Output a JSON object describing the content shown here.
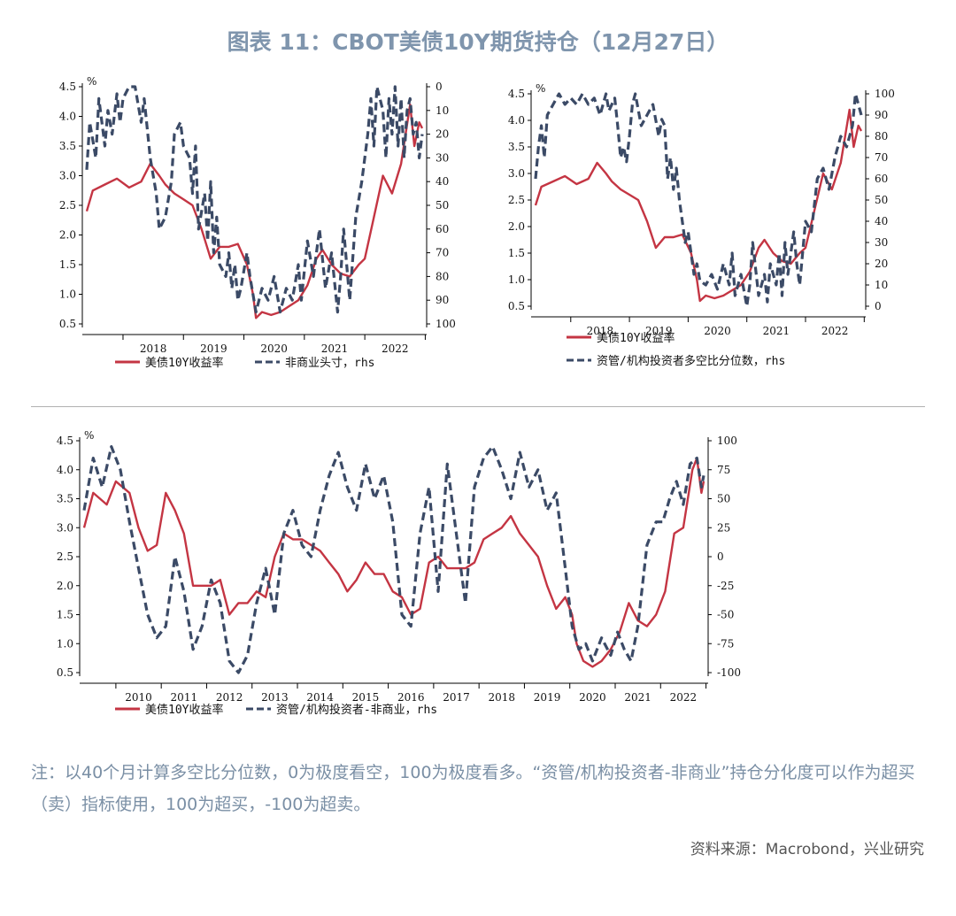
{
  "title": "图表 11：CBOT美债10Y期货持仓（12月27日）",
  "colors": {
    "yield": "#c43543",
    "position": "#3b4a66",
    "title": "#7f95ad"
  },
  "note": "注：以40个月计算多空比分位数，0为极度看空，100为极度看多。“资管/机构投资者-非商业”持仓分化度可以作为超买（卖）指标使用，100为超买，-100为超卖。",
  "source": "资料来源：Macrobond，兴业研究",
  "chart_data": [
    {
      "type": "line",
      "unit_label": "%",
      "x_range": [
        2017.4,
        2022.95
      ],
      "x_ticks": [
        "2018",
        "2019",
        "2020",
        "2021",
        "2022"
      ],
      "y_left": {
        "ticks": [
          "4.5",
          "4.0",
          "3.5",
          "3.0",
          "2.5",
          "2.0",
          "1.5",
          "1.0",
          "0.5"
        ],
        "range": [
          0.5,
          4.5
        ]
      },
      "y_right": {
        "ticks": [
          "0",
          "10",
          "20",
          "30",
          "40",
          "50",
          "60",
          "70",
          "80",
          "90",
          "100"
        ],
        "range": [
          0,
          100
        ],
        "inverted": true
      },
      "legend": [
        {
          "label": "美债10Y收益率",
          "style": "solid"
        },
        {
          "label": "非商业头寸，rhs",
          "style": "dashed"
        }
      ],
      "series": [
        {
          "name": "美债10Y收益率",
          "axis": "left",
          "style": "solid",
          "x": [
            2017.4,
            2017.5,
            2017.7,
            2017.9,
            2018.1,
            2018.3,
            2018.45,
            2018.6,
            2018.7,
            2018.85,
            2019.0,
            2019.15,
            2019.3,
            2019.45,
            2019.6,
            2019.75,
            2019.9,
            2020.05,
            2020.15,
            2020.2,
            2020.3,
            2020.45,
            2020.6,
            2020.75,
            2020.9,
            2021.05,
            2021.2,
            2021.3,
            2021.45,
            2021.6,
            2021.75,
            2021.9,
            2022.0,
            2022.15,
            2022.3,
            2022.45,
            2022.6,
            2022.75,
            2022.82,
            2022.9,
            2022.95
          ],
          "y": [
            2.4,
            2.75,
            2.85,
            2.95,
            2.8,
            2.9,
            3.2,
            3.0,
            2.85,
            2.7,
            2.6,
            2.5,
            2.1,
            1.6,
            1.8,
            1.8,
            1.85,
            1.5,
            1.0,
            0.6,
            0.7,
            0.65,
            0.7,
            0.8,
            0.9,
            1.15,
            1.6,
            1.75,
            1.5,
            1.35,
            1.3,
            1.5,
            1.6,
            2.3,
            3.0,
            2.7,
            3.2,
            4.2,
            3.5,
            3.9,
            3.8
          ]
        },
        {
          "name": "非商业头寸，rhs",
          "axis": "right",
          "style": "dashed",
          "x": [
            2017.4,
            2017.45,
            2017.55,
            2017.6,
            2017.7,
            2017.75,
            2017.82,
            2017.9,
            2017.95,
            2018.0,
            2018.1,
            2018.2,
            2018.3,
            2018.35,
            2018.45,
            2018.55,
            2018.6,
            2018.7,
            2018.8,
            2018.85,
            2018.95,
            2019.0,
            2019.1,
            2019.15,
            2019.2,
            2019.25,
            2019.35,
            2019.4,
            2019.45,
            2019.5,
            2019.55,
            2019.6,
            2019.7,
            2019.75,
            2019.8,
            2019.85,
            2019.9,
            2019.95,
            2020.05,
            2020.1,
            2020.2,
            2020.3,
            2020.4,
            2020.5,
            2020.6,
            2020.7,
            2020.8,
            2020.9,
            2020.95,
            2021.05,
            2021.15,
            2021.25,
            2021.35,
            2021.45,
            2021.55,
            2021.6,
            2021.65,
            2021.75,
            2021.85,
            2021.95,
            2022.05,
            2022.1,
            2022.15,
            2022.2,
            2022.3,
            2022.35,
            2022.4,
            2022.45,
            2022.5,
            2022.55,
            2022.6,
            2022.65,
            2022.7,
            2022.75,
            2022.8,
            2022.85,
            2022.9,
            2022.95
          ],
          "y": [
            35,
            15,
            30,
            5,
            25,
            10,
            20,
            3,
            15,
            5,
            0,
            0,
            15,
            5,
            30,
            45,
            60,
            55,
            40,
            20,
            15,
            25,
            30,
            45,
            25,
            60,
            45,
            65,
            40,
            70,
            55,
            75,
            80,
            70,
            85,
            75,
            90,
            85,
            70,
            80,
            95,
            85,
            90,
            80,
            95,
            85,
            90,
            75,
            90,
            65,
            80,
            60,
            85,
            70,
            95,
            80,
            60,
            90,
            55,
            40,
            20,
            5,
            25,
            0,
            10,
            30,
            5,
            20,
            0,
            25,
            5,
            30,
            10,
            5,
            20,
            15,
            30,
            20
          ]
        }
      ]
    },
    {
      "type": "line",
      "unit_label": "%",
      "x_range": [
        2017.4,
        2022.95
      ],
      "x_ticks": [
        "2018",
        "2019",
        "2020",
        "2021",
        "2022"
      ],
      "y_left": {
        "ticks": [
          "4.5",
          "4.0",
          "3.5",
          "3.0",
          "2.5",
          "2.0",
          "1.5",
          "1.0",
          "0.5"
        ],
        "range": [
          0.5,
          4.5
        ]
      },
      "y_right": {
        "ticks": [
          "100",
          "90",
          "80",
          "70",
          "60",
          "50",
          "40",
          "30",
          "20",
          "10",
          "0"
        ],
        "range": [
          0,
          100
        ],
        "inverted": false
      },
      "legend": [
        {
          "label": "美债10Y收益率",
          "style": "solid"
        },
        {
          "label": "资管/机构投资者多空比分位数，rhs",
          "style": "dashed"
        }
      ],
      "series": [
        {
          "name": "美债10Y收益率",
          "axis": "left",
          "style": "solid",
          "x": [
            2017.4,
            2017.5,
            2017.7,
            2017.9,
            2018.1,
            2018.3,
            2018.45,
            2018.6,
            2018.7,
            2018.85,
            2019.0,
            2019.15,
            2019.3,
            2019.45,
            2019.6,
            2019.75,
            2019.9,
            2020.05,
            2020.15,
            2020.2,
            2020.3,
            2020.45,
            2020.6,
            2020.75,
            2020.9,
            2021.05,
            2021.2,
            2021.3,
            2021.45,
            2021.6,
            2021.75,
            2021.9,
            2022.0,
            2022.15,
            2022.3,
            2022.45,
            2022.6,
            2022.75,
            2022.82,
            2022.9,
            2022.95
          ],
          "y": [
            2.4,
            2.75,
            2.85,
            2.95,
            2.8,
            2.9,
            3.2,
            3.0,
            2.85,
            2.7,
            2.6,
            2.5,
            2.1,
            1.6,
            1.8,
            1.8,
            1.85,
            1.5,
            1.0,
            0.6,
            0.7,
            0.65,
            0.7,
            0.8,
            0.9,
            1.15,
            1.6,
            1.75,
            1.5,
            1.35,
            1.3,
            1.5,
            1.6,
            2.3,
            3.0,
            2.7,
            3.2,
            4.2,
            3.5,
            3.9,
            3.8
          ]
        },
        {
          "name": "资管/机构投资者多空比分位数，rhs",
          "axis": "right",
          "style": "dashed",
          "x": [
            2017.4,
            2017.45,
            2017.5,
            2017.55,
            2017.6,
            2017.7,
            2017.8,
            2017.9,
            2018.0,
            2018.1,
            2018.2,
            2018.3,
            2018.4,
            2018.5,
            2018.6,
            2018.65,
            2018.7,
            2018.75,
            2018.8,
            2018.85,
            2018.9,
            2018.95,
            2019.0,
            2019.05,
            2019.1,
            2019.2,
            2019.3,
            2019.4,
            2019.5,
            2019.55,
            2019.6,
            2019.65,
            2019.7,
            2019.75,
            2019.8,
            2019.85,
            2019.9,
            2019.95,
            2020.0,
            2020.05,
            2020.1,
            2020.15,
            2020.2,
            2020.3,
            2020.4,
            2020.5,
            2020.6,
            2020.7,
            2020.75,
            2020.8,
            2020.9,
            2021.0,
            2021.05,
            2021.1,
            2021.2,
            2021.3,
            2021.35,
            2021.4,
            2021.5,
            2021.55,
            2021.6,
            2021.65,
            2021.7,
            2021.8,
            2021.85,
            2021.9,
            2022.0,
            2022.1,
            2022.2,
            2022.3,
            2022.4,
            2022.5,
            2022.6,
            2022.7,
            2022.8,
            2022.85,
            2022.9,
            2022.95
          ],
          "y": [
            60,
            75,
            85,
            70,
            90,
            95,
            100,
            95,
            98,
            95,
            100,
            95,
            98,
            90,
            100,
            92,
            95,
            98,
            85,
            70,
            75,
            68,
            80,
            95,
            100,
            85,
            90,
            95,
            80,
            88,
            85,
            60,
            70,
            55,
            65,
            50,
            40,
            30,
            35,
            25,
            15,
            20,
            12,
            10,
            15,
            8,
            20,
            10,
            25,
            5,
            15,
            0,
            10,
            30,
            5,
            15,
            2,
            20,
            10,
            25,
            5,
            30,
            15,
            35,
            20,
            10,
            40,
            35,
            60,
            65,
            55,
            70,
            80,
            75,
            85,
            100,
            95,
            90
          ]
        }
      ]
    },
    {
      "type": "line",
      "unit_label": "%",
      "x_range": [
        2009.3,
        2022.95
      ],
      "x_ticks": [
        "2010",
        "2011",
        "2012",
        "2013",
        "2014",
        "2015",
        "2016",
        "2017",
        "2018",
        "2019",
        "2020",
        "2021",
        "2022"
      ],
      "y_left": {
        "ticks": [
          "4.5",
          "4.0",
          "3.5",
          "3.0",
          "2.5",
          "2.0",
          "1.5",
          "1.0",
          "0.5"
        ],
        "range": [
          0.5,
          4.5
        ]
      },
      "y_right": {
        "ticks": [
          "100",
          "75",
          "50",
          "25",
          "0",
          "-25",
          "-50",
          "-75",
          "-100"
        ],
        "range": [
          -100,
          100
        ],
        "inverted": false
      },
      "legend": [
        {
          "label": "美债10Y收益率",
          "style": "solid"
        },
        {
          "label": "资管/机构投资者-非商业，rhs",
          "style": "dashed"
        }
      ],
      "series": [
        {
          "name": "美债10Y收益率",
          "axis": "left",
          "style": "solid",
          "x": [
            2009.3,
            2009.5,
            2009.8,
            2010.0,
            2010.3,
            2010.5,
            2010.7,
            2010.9,
            2011.1,
            2011.3,
            2011.5,
            2011.7,
            2011.9,
            2012.1,
            2012.3,
            2012.5,
            2012.7,
            2012.9,
            2013.1,
            2013.3,
            2013.5,
            2013.7,
            2013.9,
            2014.1,
            2014.3,
            2014.5,
            2014.7,
            2014.9,
            2015.1,
            2015.3,
            2015.5,
            2015.7,
            2015.9,
            2016.1,
            2016.3,
            2016.5,
            2016.7,
            2016.9,
            2017.1,
            2017.3,
            2017.5,
            2017.7,
            2017.9,
            2018.1,
            2018.3,
            2018.5,
            2018.7,
            2018.9,
            2019.1,
            2019.3,
            2019.5,
            2019.7,
            2019.9,
            2020.05,
            2020.15,
            2020.3,
            2020.5,
            2020.7,
            2020.9,
            2021.1,
            2021.3,
            2021.5,
            2021.7,
            2021.9,
            2022.1,
            2022.3,
            2022.5,
            2022.7,
            2022.8,
            2022.9,
            2022.95
          ],
          "y": [
            3.0,
            3.6,
            3.4,
            3.8,
            3.6,
            3.0,
            2.6,
            2.7,
            3.6,
            3.3,
            2.9,
            2.0,
            2.0,
            2.0,
            2.1,
            1.5,
            1.7,
            1.7,
            1.9,
            1.8,
            2.5,
            2.9,
            2.8,
            2.8,
            2.7,
            2.6,
            2.4,
            2.2,
            1.9,
            2.1,
            2.4,
            2.2,
            2.2,
            1.9,
            1.8,
            1.5,
            1.6,
            2.4,
            2.5,
            2.3,
            2.3,
            2.3,
            2.4,
            2.8,
            2.9,
            3.0,
            3.2,
            2.9,
            2.7,
            2.5,
            2.0,
            1.6,
            1.8,
            1.5,
            1.0,
            0.7,
            0.6,
            0.7,
            0.9,
            1.2,
            1.7,
            1.4,
            1.3,
            1.5,
            1.9,
            2.9,
            3.0,
            4.0,
            4.2,
            3.6,
            3.8
          ]
        },
        {
          "name": "资管/机构投资者-非商业，rhs",
          "axis": "right",
          "style": "dashed",
          "x": [
            2009.3,
            2009.5,
            2009.7,
            2009.9,
            2010.1,
            2010.3,
            2010.5,
            2010.7,
            2010.9,
            2011.1,
            2011.3,
            2011.5,
            2011.7,
            2011.9,
            2012.1,
            2012.3,
            2012.5,
            2012.7,
            2012.9,
            2013.1,
            2013.3,
            2013.5,
            2013.7,
            2013.9,
            2014.1,
            2014.3,
            2014.5,
            2014.7,
            2014.9,
            2015.1,
            2015.3,
            2015.5,
            2015.7,
            2015.9,
            2016.1,
            2016.3,
            2016.5,
            2016.7,
            2016.9,
            2017.1,
            2017.3,
            2017.5,
            2017.7,
            2017.9,
            2018.1,
            2018.3,
            2018.5,
            2018.7,
            2018.9,
            2019.1,
            2019.3,
            2019.5,
            2019.7,
            2019.9,
            2020.05,
            2020.2,
            2020.35,
            2020.5,
            2020.7,
            2020.9,
            2021.05,
            2021.2,
            2021.35,
            2021.5,
            2021.7,
            2021.9,
            2022.05,
            2022.2,
            2022.35,
            2022.5,
            2022.65,
            2022.8,
            2022.9,
            2022.95
          ],
          "y": [
            40,
            85,
            60,
            95,
            75,
            30,
            -10,
            -50,
            -70,
            -60,
            0,
            -30,
            -80,
            -60,
            -20,
            -40,
            -90,
            -100,
            -85,
            -40,
            -10,
            -50,
            20,
            40,
            10,
            0,
            40,
            70,
            90,
            60,
            40,
            80,
            50,
            70,
            30,
            -50,
            -60,
            20,
            60,
            -30,
            80,
            20,
            -40,
            60,
            85,
            95,
            75,
            50,
            90,
            60,
            75,
            40,
            55,
            -10,
            -60,
            -80,
            -75,
            -90,
            -70,
            -85,
            -65,
            -80,
            -90,
            -60,
            10,
            30,
            30,
            50,
            65,
            45,
            80,
            85,
            60,
            70
          ]
        }
      ]
    }
  ]
}
